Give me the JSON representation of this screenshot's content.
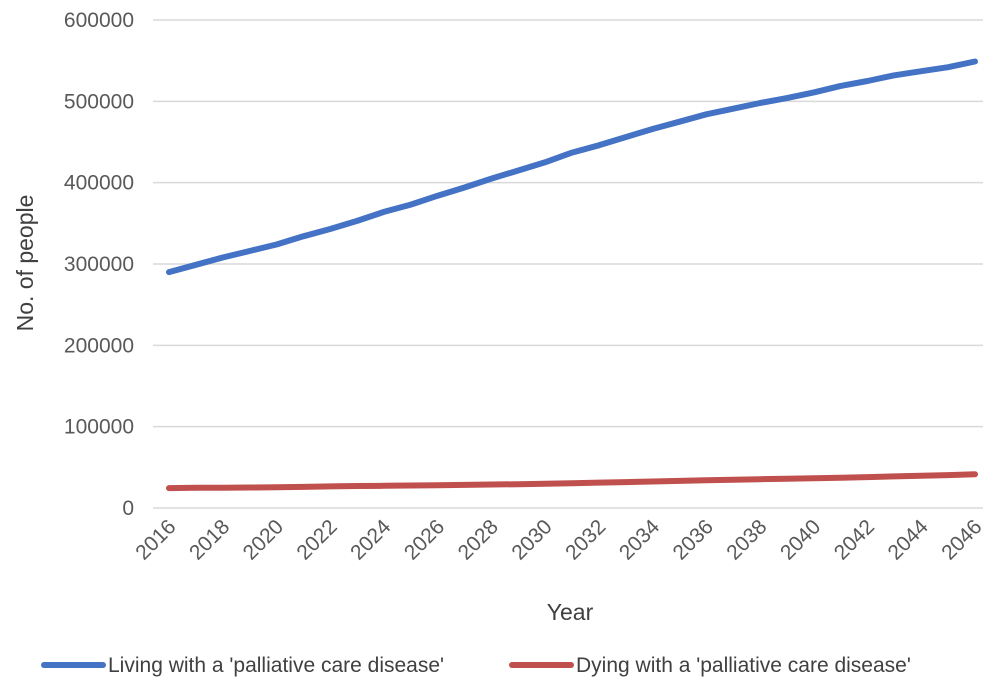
{
  "chart_data": {
    "type": "line",
    "x": [
      2016,
      2017,
      2018,
      2019,
      2020,
      2021,
      2022,
      2023,
      2024,
      2025,
      2026,
      2027,
      2028,
      2029,
      2030,
      2031,
      2032,
      2033,
      2034,
      2035,
      2036,
      2037,
      2038,
      2039,
      2040,
      2041,
      2042,
      2043,
      2044,
      2045,
      2046
    ],
    "x_tick_labels": [
      "2016",
      "2018",
      "2020",
      "2022",
      "2024",
      "2026",
      "2028",
      "2030",
      "2032",
      "2034",
      "2036",
      "2038",
      "2040",
      "2042",
      "2044",
      "2046"
    ],
    "y_tick_labels": [
      "0",
      "100000",
      "200000",
      "300000",
      "400000",
      "500000",
      "600000"
    ],
    "xlabel": "Year",
    "ylabel": "No. of people",
    "ylim": [
      0,
      600000
    ],
    "grid": "horizontal",
    "legend_position": "bottom",
    "series": [
      {
        "name": "Living with a 'palliative care disease'",
        "color": "#4472C4",
        "values": [
          290000,
          299000,
          308000,
          316000,
          324000,
          334000,
          343000,
          353000,
          364000,
          373000,
          384000,
          394000,
          405000,
          415000,
          425000,
          437000,
          446000,
          456000,
          466000,
          475000,
          484000,
          491000,
          498000,
          504000,
          511000,
          519000,
          525000,
          532000,
          537000,
          542000,
          549000
        ]
      },
      {
        "name": "Dying with a 'palliative care disease'",
        "color": "#C0504D",
        "values": [
          24500,
          24800,
          25000,
          25200,
          25500,
          26000,
          26500,
          27000,
          27300,
          27700,
          28000,
          28400,
          28900,
          29300,
          29800,
          30500,
          31200,
          31900,
          32600,
          33300,
          34000,
          34700,
          35400,
          36000,
          36600,
          37300,
          38000,
          38800,
          39600,
          40400,
          41500
        ]
      }
    ]
  }
}
